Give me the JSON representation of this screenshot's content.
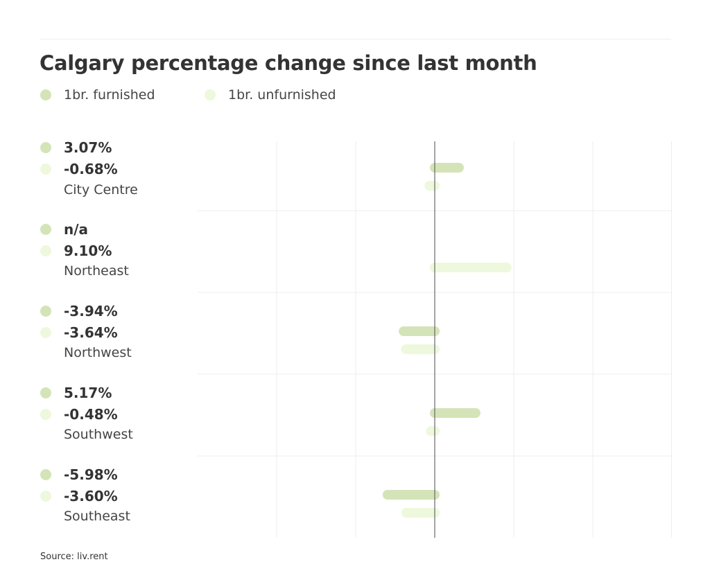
{
  "chart_data": {
    "type": "bar",
    "orientation": "horizontal",
    "title": "Calgary percentage change since last month",
    "series": [
      {
        "name": "1br. furnished",
        "color": "#d5e4b8",
        "values": [
          3.07,
          null,
          -3.94,
          5.17,
          -5.98
        ]
      },
      {
        "name": "1br. unfurnished",
        "color": "#eef8dc",
        "values": [
          -0.68,
          9.1,
          -3.64,
          -0.48,
          -3.6
        ]
      }
    ],
    "categories": [
      "City Centre",
      "Northeast",
      "Northwest",
      "Southwest",
      "Southeast"
    ],
    "value_labels": [
      [
        "3.07%",
        "-0.68%"
      ],
      [
        "n/a",
        "9.10%"
      ],
      [
        "-3.94%",
        "-3.64%"
      ],
      [
        "5.17%",
        "-0.48%"
      ],
      [
        "-5.98%",
        "-3.60%"
      ]
    ],
    "xlim": [
      -30,
      30
    ],
    "grid": true,
    "legend_position": "top-left",
    "source": "Source: liv.rent"
  }
}
